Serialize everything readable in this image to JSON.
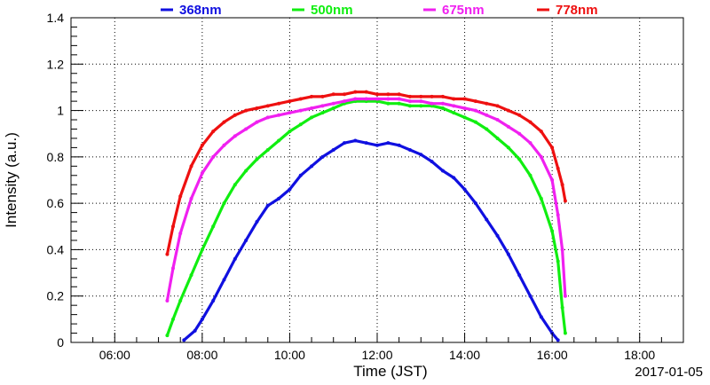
{
  "chart_data": {
    "type": "scatter",
    "xlabel": "Time (JST)",
    "ylabel": "Intensity (a.u.)",
    "date_label": "2017-01-05",
    "xlim": [
      "05:00",
      "19:00"
    ],
    "ylim": [
      0,
      1.4
    ],
    "x_ticks": [
      "06:00",
      "08:00",
      "10:00",
      "12:00",
      "14:00",
      "16:00",
      "18:00"
    ],
    "y_ticks": [
      "0",
      "0.2",
      "0.4",
      "0.6",
      "0.8",
      "1",
      "1.2",
      "1.4"
    ],
    "grid": true,
    "legend_position": "top",
    "series": [
      {
        "name": "368nm",
        "color": "#1010e0",
        "x": [
          "07:35",
          "07:50",
          "08:00",
          "08:15",
          "08:30",
          "08:45",
          "09:00",
          "09:15",
          "09:30",
          "09:45",
          "10:00",
          "10:15",
          "10:30",
          "10:45",
          "11:00",
          "11:15",
          "11:30",
          "11:45",
          "12:00",
          "12:15",
          "12:30",
          "12:45",
          "13:00",
          "13:15",
          "13:30",
          "13:45",
          "14:00",
          "14:15",
          "14:30",
          "14:45",
          "15:00",
          "15:15",
          "15:30",
          "15:45",
          "16:00",
          "16:08"
        ],
        "values": [
          0.01,
          0.05,
          0.1,
          0.18,
          0.27,
          0.36,
          0.44,
          0.52,
          0.59,
          0.62,
          0.66,
          0.72,
          0.76,
          0.8,
          0.83,
          0.86,
          0.87,
          0.86,
          0.85,
          0.86,
          0.85,
          0.83,
          0.81,
          0.78,
          0.74,
          0.71,
          0.66,
          0.6,
          0.53,
          0.46,
          0.38,
          0.29,
          0.2,
          0.11,
          0.04,
          0.01
        ]
      },
      {
        "name": "500nm",
        "color": "#10ee10",
        "x": [
          "07:12",
          "07:20",
          "07:30",
          "07:45",
          "08:00",
          "08:15",
          "08:30",
          "08:45",
          "09:00",
          "09:15",
          "09:30",
          "09:45",
          "10:00",
          "10:15",
          "10:30",
          "10:45",
          "11:00",
          "11:15",
          "11:30",
          "11:45",
          "12:00",
          "12:15",
          "12:30",
          "12:45",
          "13:00",
          "13:15",
          "13:30",
          "13:45",
          "14:00",
          "14:15",
          "14:30",
          "14:45",
          "15:00",
          "15:15",
          "15:30",
          "15:45",
          "16:00",
          "16:08",
          "16:14",
          "16:18"
        ],
        "values": [
          0.03,
          0.1,
          0.18,
          0.29,
          0.4,
          0.5,
          0.6,
          0.68,
          0.74,
          0.79,
          0.83,
          0.87,
          0.91,
          0.94,
          0.97,
          0.99,
          1.01,
          1.03,
          1.04,
          1.04,
          1.04,
          1.03,
          1.03,
          1.02,
          1.02,
          1.02,
          1.01,
          0.99,
          0.97,
          0.95,
          0.92,
          0.88,
          0.84,
          0.79,
          0.72,
          0.62,
          0.48,
          0.35,
          0.15,
          0.04
        ]
      },
      {
        "name": "675nm",
        "color": "#f020f0",
        "x": [
          "07:12",
          "07:20",
          "07:30",
          "07:45",
          "08:00",
          "08:15",
          "08:30",
          "08:45",
          "09:00",
          "09:15",
          "09:30",
          "09:45",
          "10:00",
          "10:15",
          "10:30",
          "10:45",
          "11:00",
          "11:15",
          "11:30",
          "11:45",
          "12:00",
          "12:15",
          "12:30",
          "12:45",
          "13:00",
          "13:15",
          "13:30",
          "13:45",
          "14:00",
          "14:15",
          "14:30",
          "14:45",
          "15:00",
          "15:15",
          "15:30",
          "15:45",
          "16:00",
          "16:08",
          "16:14",
          "16:18"
        ],
        "values": [
          0.18,
          0.32,
          0.47,
          0.62,
          0.73,
          0.8,
          0.85,
          0.89,
          0.92,
          0.95,
          0.97,
          0.98,
          0.99,
          1.0,
          1.01,
          1.02,
          1.03,
          1.04,
          1.05,
          1.05,
          1.05,
          1.05,
          1.05,
          1.04,
          1.04,
          1.03,
          1.03,
          1.02,
          1.01,
          1.0,
          0.98,
          0.96,
          0.93,
          0.9,
          0.86,
          0.8,
          0.7,
          0.55,
          0.4,
          0.2
        ]
      },
      {
        "name": "778nm",
        "color": "#ee1010",
        "x": [
          "07:12",
          "07:20",
          "07:30",
          "07:45",
          "08:00",
          "08:15",
          "08:30",
          "08:45",
          "09:00",
          "09:15",
          "09:30",
          "09:45",
          "10:00",
          "10:15",
          "10:30",
          "10:45",
          "11:00",
          "11:15",
          "11:30",
          "11:45",
          "12:00",
          "12:15",
          "12:30",
          "12:45",
          "13:00",
          "13:15",
          "13:30",
          "13:45",
          "14:00",
          "14:15",
          "14:30",
          "14:45",
          "15:00",
          "15:15",
          "15:30",
          "15:45",
          "16:00",
          "16:08",
          "16:14",
          "16:18"
        ],
        "values": [
          0.38,
          0.5,
          0.63,
          0.76,
          0.85,
          0.91,
          0.95,
          0.98,
          1.0,
          1.01,
          1.02,
          1.03,
          1.04,
          1.05,
          1.06,
          1.06,
          1.07,
          1.07,
          1.08,
          1.08,
          1.07,
          1.07,
          1.07,
          1.06,
          1.06,
          1.06,
          1.06,
          1.05,
          1.05,
          1.04,
          1.03,
          1.02,
          1.0,
          0.98,
          0.95,
          0.91,
          0.84,
          0.75,
          0.68,
          0.61
        ]
      }
    ]
  }
}
